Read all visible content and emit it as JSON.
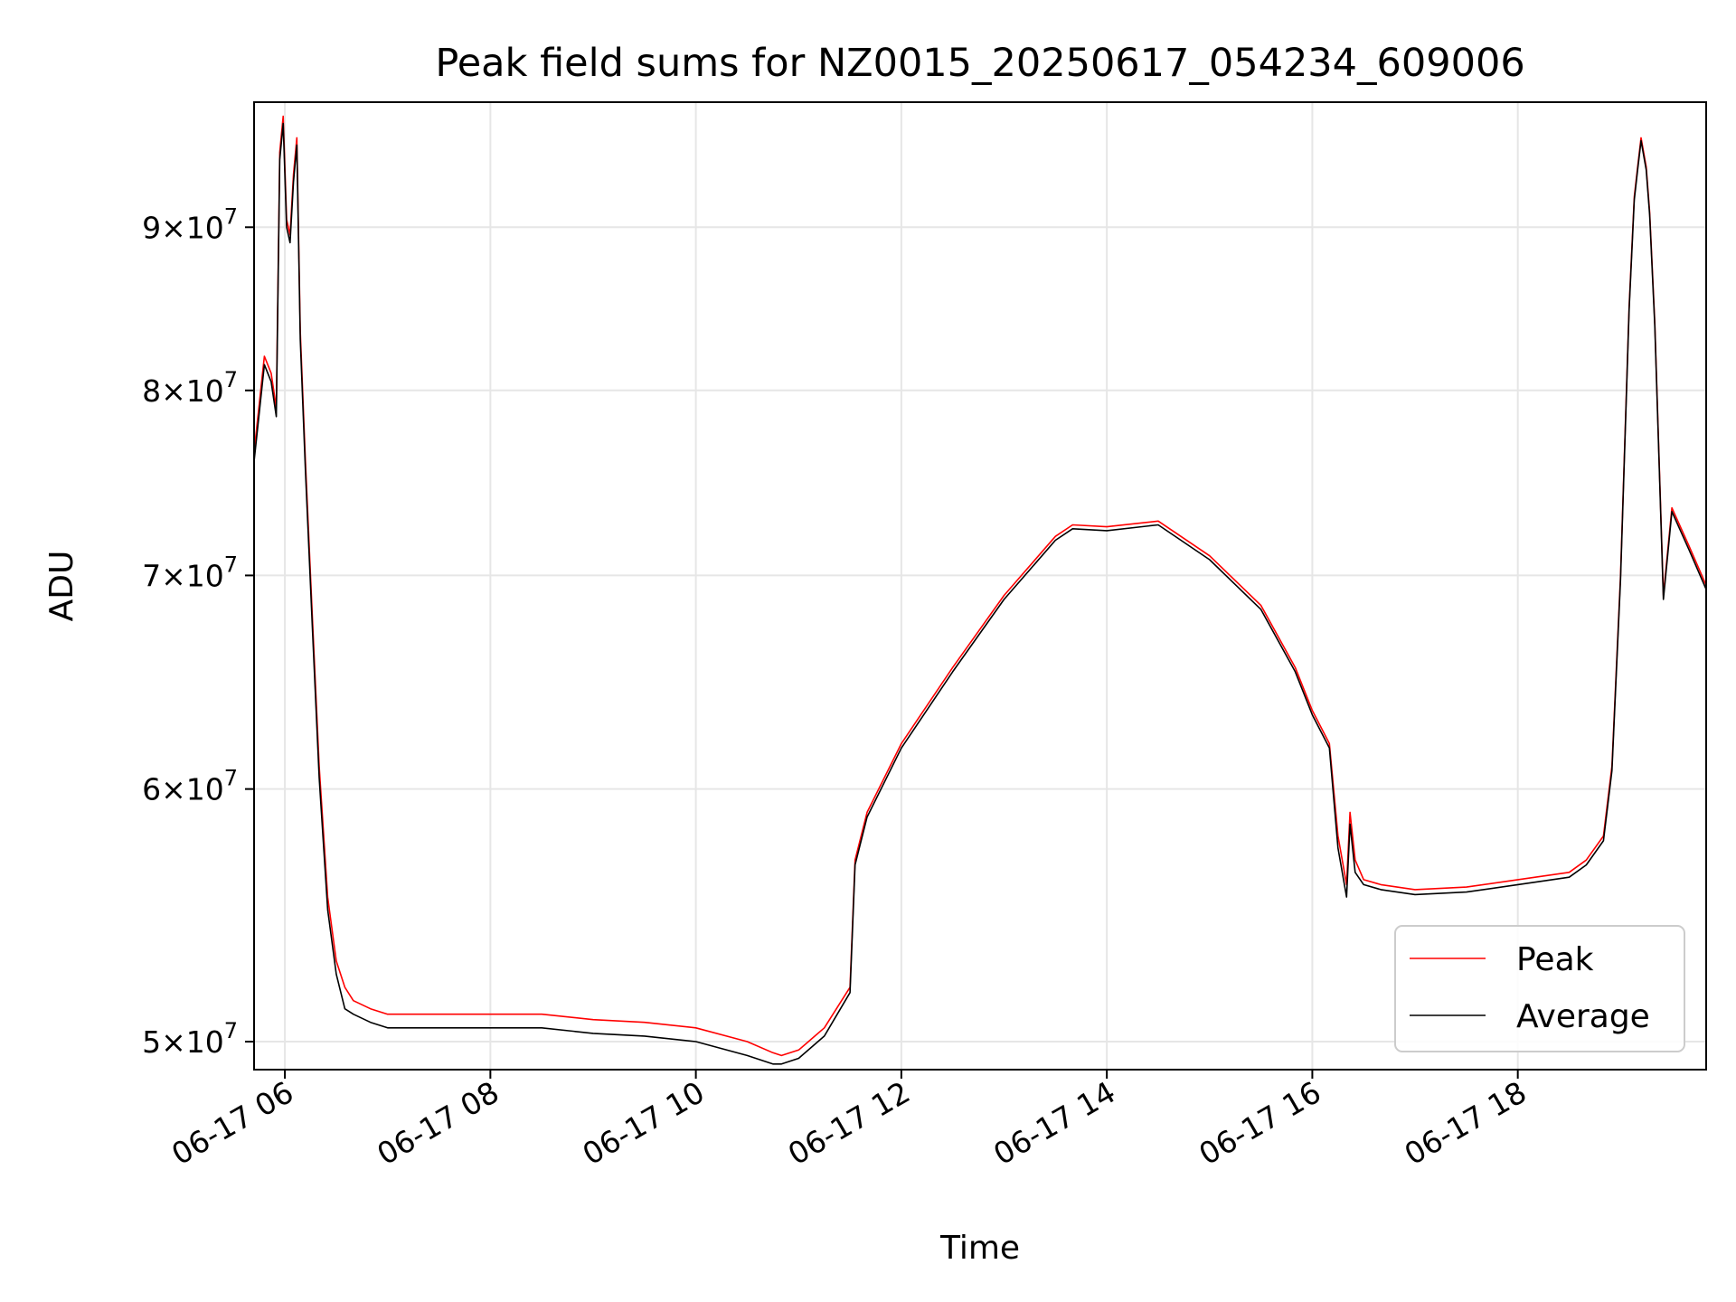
{
  "chart_data": {
    "type": "line",
    "title": "Peak field sums for NZ0015_20250617_054234_609006",
    "xlabel": "Time",
    "ylabel": "ADU",
    "y_scale": "log",
    "grid": true,
    "legend_position": "lower-right",
    "xlim": [
      "06-17 05:42",
      "06-17 19:50"
    ],
    "ylim": [
      49000000,
      98500000
    ],
    "x_ticks": [
      "06-17 06",
      "06-17 08",
      "06-17 10",
      "06-17 12",
      "06-17 14",
      "06-17 16",
      "06-17 18"
    ],
    "y_ticks": [
      {
        "value": 50000000,
        "mant": "5",
        "exp": "7"
      },
      {
        "value": 60000000,
        "mant": "6",
        "exp": "7"
      },
      {
        "value": 70000000,
        "mant": "7",
        "exp": "7"
      },
      {
        "value": 80000000,
        "mant": "8",
        "exp": "7"
      },
      {
        "value": 90000000,
        "mant": "9",
        "exp": "7"
      }
    ],
    "x": [
      "05:42",
      "05:48",
      "05:52",
      "05:55",
      "05:57",
      "05:59",
      "06:01",
      "06:03",
      "06:05",
      "06:07",
      "06:09",
      "06:12",
      "06:16",
      "06:20",
      "06:25",
      "06:30",
      "06:35",
      "06:40",
      "06:50",
      "07:00",
      "07:30",
      "08:00",
      "08:30",
      "09:00",
      "09:30",
      "10:00",
      "10:30",
      "10:45",
      "10:50",
      "11:00",
      "11:15",
      "11:30",
      "11:33",
      "11:40",
      "12:00",
      "12:30",
      "13:00",
      "13:30",
      "13:40",
      "14:00",
      "14:30",
      "15:00",
      "15:30",
      "15:50",
      "16:00",
      "16:10",
      "16:15",
      "16:20",
      "16:22",
      "16:25",
      "16:30",
      "16:40",
      "17:00",
      "17:30",
      "18:00",
      "18:30",
      "18:40",
      "18:50",
      "18:55",
      "19:00",
      "19:05",
      "19:08",
      "19:10",
      "19:12",
      "19:15",
      "19:17",
      "19:20",
      "19:25",
      "19:30",
      "19:40",
      "19:50"
    ],
    "series": [
      {
        "name": "Peak",
        "color": "#ff0000",
        "values": [
          76500000,
          82000000,
          81000000,
          79000000,
          95000000,
          97500000,
          90500000,
          89500000,
          93500000,
          96000000,
          83500000,
          76000000,
          68000000,
          61000000,
          55500000,
          53000000,
          52000000,
          51500000,
          51200000,
          51000000,
          51000000,
          51000000,
          51000000,
          50800000,
          50700000,
          50500000,
          50000000,
          49600000,
          49500000,
          49700000,
          50500000,
          52000000,
          57000000,
          59000000,
          62000000,
          65500000,
          69000000,
          72000000,
          72600000,
          72500000,
          72800000,
          71000000,
          68500000,
          65500000,
          63500000,
          62000000,
          58000000,
          56000000,
          59000000,
          57000000,
          56200000,
          56000000,
          55800000,
          55900000,
          56200000,
          56500000,
          57000000,
          58000000,
          61000000,
          70000000,
          85000000,
          92000000,
          94000000,
          96000000,
          94000000,
          91000000,
          84000000,
          69000000,
          73500000,
          71500000,
          69500000
        ]
      },
      {
        "name": "Average",
        "color": "#000000",
        "values": [
          76000000,
          81500000,
          80500000,
          78500000,
          94500000,
          97000000,
          90000000,
          89000000,
          93000000,
          95500000,
          83000000,
          75500000,
          67500000,
          60500000,
          55000000,
          52500000,
          51200000,
          51000000,
          50700000,
          50500000,
          50500000,
          50500000,
          50500000,
          50300000,
          50200000,
          50000000,
          49500000,
          49200000,
          49200000,
          49400000,
          50200000,
          51800000,
          56800000,
          58800000,
          61800000,
          65300000,
          68800000,
          71800000,
          72400000,
          72300000,
          72600000,
          70800000,
          68300000,
          65300000,
          63300000,
          61800000,
          57500000,
          55500000,
          58500000,
          56500000,
          56000000,
          55800000,
          55600000,
          55700000,
          56000000,
          56300000,
          56800000,
          57800000,
          60800000,
          69800000,
          84800000,
          91800000,
          93800000,
          95800000,
          93800000,
          90800000,
          83800000,
          68800000,
          73300000,
          71300000,
          69300000
        ]
      }
    ]
  }
}
